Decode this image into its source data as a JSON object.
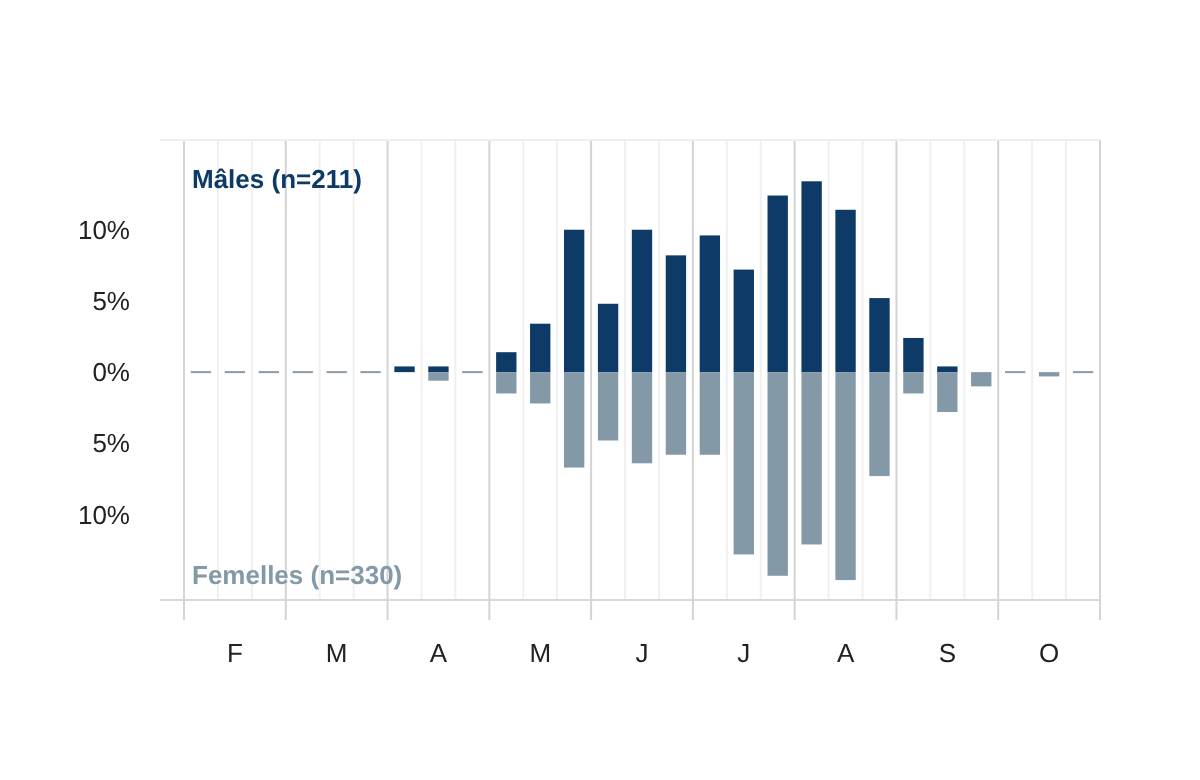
{
  "chart_data": {
    "type": "bar",
    "stacked": true,
    "grid": "x",
    "categories": [
      null,
      "F",
      null,
      null,
      "M",
      null,
      null,
      "A",
      null,
      null,
      "M",
      null,
      null,
      "J",
      null,
      null,
      "J",
      null,
      null,
      "A",
      null,
      null,
      "S",
      null,
      null,
      "O",
      null
    ],
    "series": [
      {
        "name": "Mâles (n=211)",
        "color": "#0d3a66",
        "values": [
          0,
          0,
          0,
          0,
          0,
          0,
          0.4,
          0.4,
          0,
          1.4,
          3.4,
          10.0,
          4.8,
          10.0,
          8.2,
          9.6,
          7.2,
          12.4,
          13.4,
          11.4,
          5.2,
          2.4,
          0.4,
          0,
          0,
          0,
          0
        ]
      },
      {
        "name": "Femelles (n=330)",
        "color": "#8499a8",
        "values": [
          0,
          0,
          0,
          0,
          0,
          0,
          0,
          -0.6,
          0,
          -1.5,
          -2.2,
          -6.7,
          -4.8,
          -6.4,
          -5.8,
          -5.8,
          -12.8,
          -14.3,
          -12.1,
          -14.6,
          -7.3,
          -1.5,
          -2.8,
          -1.0,
          0,
          -0.3,
          0
        ]
      }
    ],
    "ylim": [
      -16,
      16.3
    ],
    "yticks": [
      {
        "value": -10,
        "label": "10%"
      },
      {
        "value": -5,
        "label": "5%"
      },
      {
        "value": 0,
        "label": "0%"
      },
      {
        "value": 5,
        "label": "5%"
      },
      {
        "value": 10,
        "label": "10%"
      }
    ]
  }
}
